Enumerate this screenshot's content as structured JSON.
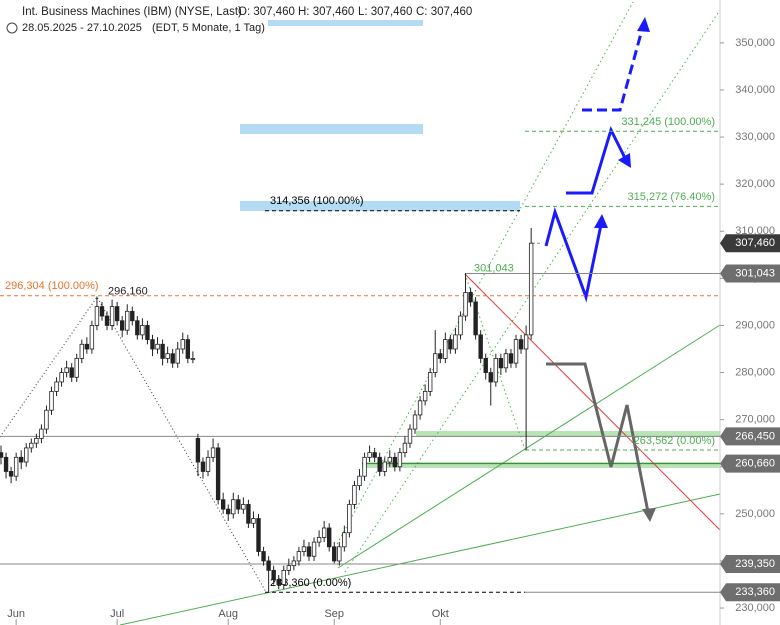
{
  "chart_data": {
    "type": "candlestick",
    "title": "Int. Business Machines (IBM) (NYSE, Last)",
    "ohlc": [
      "O: 307,460",
      "H: 307,460",
      "L: 307,460",
      "C: 307,460"
    ],
    "subtitle": "28.05.2025 - 27.10.2025",
    "subtitle_note": "(EDT, 5 Monate, 1 Tag)",
    "xlim": [
      -0.2,
      142.4
    ],
    "xticks": [
      {
        "value": 3,
        "label": "Jun"
      },
      {
        "value": 23,
        "label": "Jul"
      },
      {
        "value": 45,
        "label": "Aug"
      },
      {
        "value": 66,
        "label": "Sep"
      },
      {
        "value": 87,
        "label": "Okt"
      }
    ],
    "ylim": [
      226.4,
      359.1
    ],
    "yticks": [
      {
        "value": 230,
        "label": "230,000"
      },
      {
        "value": 240,
        "label": "240,000"
      },
      {
        "value": 250,
        "label": "250,000"
      },
      {
        "value": 260,
        "label": "260,000"
      },
      {
        "value": 270,
        "label": "270,000"
      },
      {
        "value": 280,
        "label": "280,000"
      },
      {
        "value": 290,
        "label": "290,000"
      },
      {
        "value": 300,
        "label": "300,000"
      },
      {
        "value": 310,
        "label": "310,000"
      },
      {
        "value": 320,
        "label": "320,000"
      },
      {
        "value": 330,
        "label": "330,000"
      },
      {
        "value": 340,
        "label": "340,000"
      },
      {
        "value": 350,
        "label": "350,000"
      }
    ],
    "candles": [
      [
        263,
        264.5,
        260.5,
        262
      ],
      [
        262,
        263,
        257.5,
        259
      ],
      [
        259,
        260,
        256.5,
        258
      ],
      [
        258,
        263,
        257,
        262
      ],
      [
        262,
        263.5,
        259.5,
        261
      ],
      [
        261,
        265,
        260,
        264
      ],
      [
        264,
        266,
        263,
        265
      ],
      [
        265,
        267,
        264,
        266
      ],
      [
        266,
        269,
        265,
        268
      ],
      [
        268,
        273,
        267,
        272
      ],
      [
        272,
        277,
        271,
        276
      ],
      [
        276,
        279,
        275,
        278
      ],
      [
        278,
        281,
        277,
        280
      ],
      [
        280,
        282.5,
        279,
        281
      ],
      [
        281,
        282,
        278,
        279
      ],
      [
        279,
        284,
        278,
        283
      ],
      [
        283,
        287,
        282,
        286
      ],
      [
        286,
        287.5,
        284,
        285
      ],
      [
        285,
        291,
        284,
        290
      ],
      [
        290,
        296.16,
        289,
        294
      ],
      [
        294,
        295,
        291,
        292
      ],
      [
        292,
        293,
        289,
        290
      ],
      [
        290,
        295.5,
        289,
        294
      ],
      [
        294,
        295,
        290,
        291
      ],
      [
        291,
        292,
        287.5,
        289
      ],
      [
        289,
        294.5,
        288,
        293
      ],
      [
        293,
        294,
        290,
        291
      ],
      [
        291,
        292,
        287,
        288
      ],
      [
        288,
        291.5,
        287,
        290
      ],
      [
        290,
        291,
        286,
        287
      ],
      [
        287,
        288,
        283.5,
        285
      ],
      [
        285,
        287.5,
        284,
        286
      ],
      [
        286,
        287,
        281.5,
        283
      ],
      [
        283,
        285.5,
        282,
        284
      ],
      [
        284,
        285,
        281,
        282
      ],
      [
        282,
        286.5,
        281,
        285
      ],
      [
        285,
        288.5,
        284,
        287
      ],
      [
        287,
        288,
        282,
        283
      ],
      [
        283,
        284.5,
        282,
        283
      ],
      [
        266,
        267,
        258,
        261
      ],
      [
        261,
        262,
        257.5,
        259
      ],
      [
        259,
        263.5,
        258,
        262
      ],
      [
        262,
        266,
        261,
        264
      ],
      [
        264,
        265,
        252,
        253
      ],
      [
        253,
        254.5,
        250,
        251
      ],
      [
        251,
        252,
        248.5,
        250
      ],
      [
        250,
        254.5,
        249,
        253
      ],
      [
        253,
        254,
        250,
        251
      ],
      [
        251,
        253.5,
        250,
        252
      ],
      [
        252,
        253,
        247,
        248
      ],
      [
        248,
        250.5,
        247,
        249
      ],
      [
        249,
        250,
        241,
        242
      ],
      [
        242,
        243,
        239,
        240
      ],
      [
        240,
        241,
        233.36,
        238
      ],
      [
        238,
        239,
        235,
        236
      ],
      [
        236,
        237,
        234,
        235
      ],
      [
        235,
        239,
        234,
        238
      ],
      [
        238,
        240.5,
        237,
        239
      ],
      [
        239,
        241,
        238,
        240
      ],
      [
        240,
        243,
        239,
        242
      ],
      [
        242,
        244.5,
        241,
        243
      ],
      [
        243,
        244,
        240,
        241
      ],
      [
        241,
        245,
        240,
        244
      ],
      [
        244,
        246.5,
        243,
        245
      ],
      [
        245,
        248.5,
        244,
        247
      ],
      [
        247,
        248,
        242,
        243
      ],
      [
        243,
        244,
        239.5,
        240
      ],
      [
        240,
        244,
        239,
        243
      ],
      [
        243,
        247.5,
        242,
        246
      ],
      [
        246,
        253,
        245,
        252
      ],
      [
        252,
        257,
        251,
        256
      ],
      [
        256,
        259.5,
        255,
        258
      ],
      [
        258,
        263,
        257,
        262
      ],
      [
        262,
        264.5,
        261,
        263
      ],
      [
        263,
        264,
        261,
        262
      ],
      [
        262,
        263,
        258,
        259
      ],
      [
        259,
        262,
        258,
        261
      ],
      [
        261,
        263.5,
        260,
        262
      ],
      [
        262,
        263,
        259,
        260
      ],
      [
        260,
        264,
        259,
        263
      ],
      [
        263,
        266.5,
        262,
        265
      ],
      [
        265,
        269,
        264,
        268
      ],
      [
        268,
        272,
        267,
        271
      ],
      [
        271,
        275,
        270,
        274
      ],
      [
        274,
        277.5,
        273,
        276
      ],
      [
        276,
        281,
        275,
        280
      ],
      [
        280,
        289,
        279,
        284
      ],
      [
        284,
        285,
        282,
        283
      ],
      [
        283,
        288.5,
        282,
        287
      ],
      [
        287,
        288,
        284,
        285
      ],
      [
        285,
        289.5,
        284,
        288
      ],
      [
        288,
        293,
        287,
        292
      ],
      [
        292,
        301.043,
        291,
        297
      ],
      [
        297,
        298,
        294,
        295
      ],
      [
        295,
        296,
        287,
        288
      ],
      [
        288,
        289,
        282,
        283
      ],
      [
        283,
        284,
        278.5,
        280
      ],
      [
        280,
        281,
        273,
        278
      ],
      [
        278,
        284,
        277,
        283
      ],
      [
        283,
        284,
        279.5,
        281
      ],
      [
        281,
        285,
        280,
        284
      ],
      [
        284,
        285,
        281,
        282
      ],
      [
        282,
        288,
        281,
        287
      ],
      [
        287,
        288,
        284,
        285
      ],
      [
        285,
        290,
        263.562,
        288
      ],
      [
        288,
        310.7,
        287,
        307.46
      ]
    ],
    "levels": [
      {
        "value": 307.46,
        "label": "307,460",
        "color": "#3a3a3a"
      },
      {
        "value": 301.043,
        "label": "301,043",
        "color": "#6e6e6e"
      },
      {
        "value": 266.45,
        "label": "266,450",
        "color": "#6e6e6e"
      },
      {
        "value": 260.66,
        "label": "260,660",
        "color": "#6e6e6e"
      },
      {
        "value": 239.35,
        "label": "239,350",
        "color": "#6e6e6e"
      },
      {
        "value": 233.36,
        "label": "233,360",
        "color": "#6e6e6e"
      }
    ],
    "fib_lines": [
      {
        "value": 296.304,
        "label": "296,304 (100.00%)",
        "color": "#e8732a"
      },
      {
        "value": 314.356,
        "label": "314,356 (100.00%)",
        "color": "#000000"
      },
      {
        "value": 331.245,
        "label": "331,245 (100.00%)",
        "color": "#4caf50"
      },
      {
        "value": 315.272,
        "label": "315,272 (76.40%)",
        "color": "#4caf50"
      },
      {
        "value": 263.562,
        "label": "263,562 (0.00%)",
        "color": "#4caf50"
      },
      {
        "value": 233.36,
        "label": "233,360 (0.00%)",
        "color": "#000000"
      }
    ],
    "price_notes": [
      {
        "value": 296.16,
        "label": "296,160",
        "color": "#222222"
      },
      {
        "value": 301.043,
        "label": "301,043",
        "color": "#4caf50"
      }
    ]
  }
}
